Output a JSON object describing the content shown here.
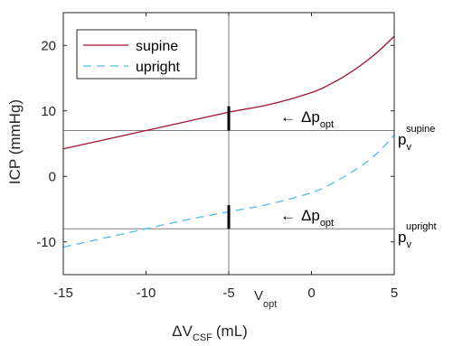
{
  "chart_data": {
    "type": "line",
    "xlabel": {
      "base": "ΔV",
      "sub": "CSF",
      "unit": "(mL)"
    },
    "ylabel": "ICP (mmHg)",
    "xlim": [
      -15,
      5
    ],
    "ylim": [
      -15,
      25
    ],
    "xticks": [
      "-15",
      "-10",
      "-5",
      "0",
      "5"
    ],
    "xtick_values": [
      -15,
      -10,
      -5,
      0,
      5
    ],
    "v_opt_tick": {
      "value": -5,
      "base": "V",
      "sub": "opt"
    },
    "yticks": [
      "-10",
      "0",
      "10",
      "20"
    ],
    "ytick_values": [
      -10,
      0,
      10,
      20
    ],
    "legend": {
      "position": "top-left"
    },
    "series": [
      {
        "name": "supine",
        "color": "#a2142f",
        "dash": "solid",
        "x": [
          -15,
          -12.5,
          -10,
          -7.5,
          -5,
          -2.5,
          0,
          1,
          2,
          3,
          4,
          5
        ],
        "y": [
          4.2,
          5.6,
          7.0,
          8.4,
          9.8,
          11.0,
          12.8,
          13.9,
          15.3,
          17.0,
          19.0,
          21.4
        ]
      },
      {
        "name": "upright",
        "color": "#4dbeee",
        "dash": "dashed",
        "x": [
          -15,
          -12.5,
          -10,
          -7.5,
          -5,
          -2.5,
          0,
          1,
          2,
          3,
          4,
          5
        ],
        "y": [
          -10.8,
          -9.4,
          -8.0,
          -6.6,
          -5.4,
          -4.2,
          -2.5,
          -1.4,
          0.0,
          1.6,
          3.6,
          6.3
        ]
      }
    ],
    "reference_lines": {
      "vertical_x": -5,
      "horizontal": [
        {
          "y": 7,
          "label": {
            "base": "p",
            "sub": "v",
            "sup": "supine"
          }
        },
        {
          "y": -8,
          "label": {
            "base": "p",
            "sub": "v",
            "sup": "upright"
          }
        }
      ]
    },
    "delta_annotations": [
      {
        "x": -5,
        "y_from": 7,
        "y_to": 10.7,
        "text": {
          "arrow": "←",
          "base": "Δp",
          "sub": "opt"
        }
      },
      {
        "x": -5,
        "y_from": -8,
        "y_to": -4.4,
        "text": {
          "arrow": "←",
          "base": "Δp",
          "sub": "opt"
        }
      }
    ]
  }
}
